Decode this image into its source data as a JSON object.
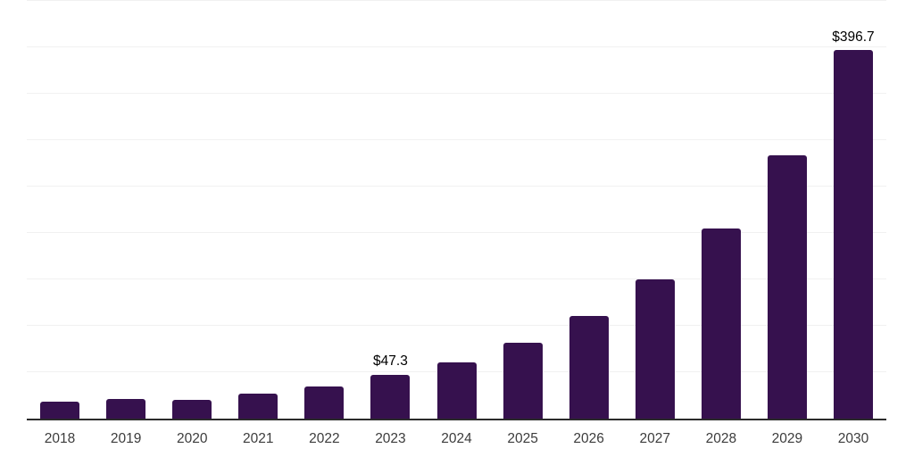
{
  "chart_data": {
    "type": "bar",
    "title": "",
    "xlabel": "",
    "ylabel": "",
    "categories": [
      "2018",
      "2019",
      "2020",
      "2021",
      "2022",
      "2023",
      "2024",
      "2025",
      "2026",
      "2027",
      "2028",
      "2029",
      "2030"
    ],
    "values": [
      18.3,
      21.4,
      20.1,
      26.8,
      34.4,
      47.3,
      60.7,
      81.5,
      110.2,
      150.2,
      205.2,
      283.8,
      396.7
    ],
    "value_labels": {
      "2023": "$47.3",
      "2030": "$396.7"
    },
    "ylim": [
      0,
      450
    ],
    "grid_step": 50,
    "grid": true,
    "legend": false,
    "y_axis_tick_labels_visible": false
  },
  "style": {
    "bar_color": "#36114e",
    "axis_color": "#2b2b2b",
    "grid_color": "#f1f1f1",
    "year_label_color": "#3c3c3c",
    "value_label_color": "#000000",
    "background": "#ffffff"
  }
}
